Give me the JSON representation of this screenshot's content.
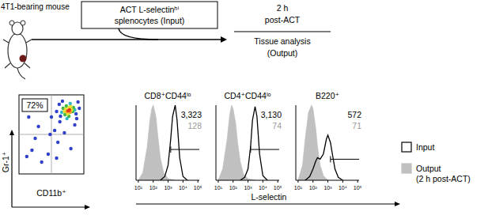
{
  "schematic": {
    "mouse_label": "4T1-bearing mouse",
    "injection": [
      "ACT L-selectinʰⁱ",
      "splenocytes (Input)"
    ],
    "time": [
      "2 h",
      "post-ACT"
    ],
    "analysis": [
      "Tissue analysis",
      "(Output)"
    ]
  },
  "chart_data": [
    {
      "type": "scatter",
      "x_label": "CD11b⁺",
      "y_label": "Gr-1⁺",
      "xlim": [
        0,
        100
      ],
      "ylim": [
        0,
        100
      ],
      "tick_labels": false,
      "quadrants": {
        "x": 50,
        "y": 50
      },
      "annotations": [
        "72%"
      ],
      "x": [
        76,
        78,
        74,
        79,
        72,
        77,
        81,
        75,
        70,
        80,
        83,
        73,
        68,
        84,
        77,
        71,
        86,
        66,
        79,
        74,
        20,
        35,
        45,
        60,
        30,
        55,
        63,
        50,
        62,
        91,
        40,
        86,
        70,
        25,
        15,
        58,
        89,
        64,
        58,
        93,
        48,
        36,
        80,
        12,
        67,
        88
      ],
      "values": [
        80,
        81,
        79,
        78,
        82,
        84,
        81,
        76,
        79,
        85,
        79,
        86,
        83,
        84,
        73,
        75,
        81,
        78,
        89,
        70,
        30,
        15,
        25,
        40,
        60,
        55,
        66,
        72,
        88,
        91,
        82,
        62,
        52,
        45,
        72,
        20,
        70,
        73,
        79,
        83,
        50,
        92,
        32,
        22,
        92,
        76
      ],
      "colors": [
        "#e8341c",
        "#e8341c",
        "#f0a020",
        "#f0a020",
        "#e8e030",
        "#e8e030",
        "#e8e030",
        "#e8e030",
        "#e8e030",
        "#e8e030",
        "#40b848",
        "#40b848",
        "#40b848",
        "#40b848",
        "#40b848",
        "#40b848",
        "#30b8c8",
        "#30b8c8",
        "#30b8c8",
        "#30b8c8",
        "#3040c8",
        "#3040c8",
        "#3040c8",
        "#3040c8",
        "#3040c8",
        "#3040c8",
        "#3040c8",
        "#3040c8",
        "#3040c8",
        "#3040c8",
        "#3040c8",
        "#3040c8",
        "#3040c8",
        "#3040c8",
        "#3040c8",
        "#3040c8",
        "#3040c8",
        "#3040c8",
        "#3040c8",
        "#3040c8",
        "#3040c8",
        "#3040c8",
        "#3040c8",
        "#3040c8",
        "#3040c8",
        "#3040c8"
      ]
    },
    {
      "type": "line",
      "title": "CD8⁺CD44ˡᵒ",
      "log": "x",
      "tick_labels": "x",
      "xlim": [
        7,
        125000
      ],
      "ylim": [
        0,
        100
      ],
      "xticks": [
        {
          "value": 10,
          "label": "10¹"
        },
        {
          "value": 100,
          "label": "10²"
        },
        {
          "value": 1000,
          "label": "10³"
        },
        {
          "value": 10000,
          "label": "10⁴"
        },
        {
          "value": 100000,
          "label": "10⁵"
        }
      ],
      "gate": {
        "x": [
          1500,
          125000
        ],
        "y": 41
      },
      "series": [
        {
          "type": "line",
          "color": "#000000",
          "annotation": "3,323",
          "x": [
            300,
            600,
            1000,
            1500,
            2000,
            3000,
            4000,
            6000,
            10000,
            20000
          ],
          "values": [
            0,
            5,
            20,
            55,
            85,
            100,
            80,
            30,
            5,
            0
          ]
        },
        {
          "type": "area",
          "color": "#c0c0c0",
          "annotation": "128",
          "x": [
            10,
            20,
            40,
            60,
            80,
            100,
            150,
            200,
            300,
            500,
            1000,
            3000
          ],
          "values": [
            0,
            10,
            45,
            80,
            95,
            100,
            85,
            60,
            30,
            10,
            2,
            0
          ]
        }
      ]
    },
    {
      "type": "line",
      "title": "CD4⁺CD44ˡᵒ",
      "log": "x",
      "tick_labels": "x",
      "xlim": [
        7,
        125000
      ],
      "ylim": [
        0,
        100
      ],
      "xticks": [
        {
          "value": 10,
          "label": "10¹"
        },
        {
          "value": 100,
          "label": "10²"
        },
        {
          "value": 1000,
          "label": "10³"
        },
        {
          "value": 10000,
          "label": "10⁴"
        },
        {
          "value": 100000,
          "label": "10⁵"
        }
      ],
      "gate": {
        "x": [
          1500,
          125000
        ],
        "y": 41
      },
      "series": [
        {
          "type": "line",
          "color": "#000000",
          "annotation": "3,130",
          "x": [
            300,
            600,
            1000,
            1500,
            2000,
            3000,
            4000,
            6000,
            10000,
            20000
          ],
          "values": [
            0,
            4,
            15,
            45,
            80,
            98,
            85,
            35,
            6,
            0
          ]
        },
        {
          "type": "area",
          "color": "#c0c0c0",
          "annotation": "74",
          "x": [
            10,
            20,
            40,
            60,
            80,
            100,
            150,
            200,
            300,
            500,
            1000,
            3000
          ],
          "values": [
            0,
            15,
            55,
            88,
            100,
            95,
            75,
            50,
            25,
            8,
            2,
            0
          ]
        }
      ]
    },
    {
      "type": "line",
      "title": "B220⁺",
      "log": "x",
      "tick_labels": "x",
      "xlim": [
        7,
        125000
      ],
      "ylim": [
        0,
        100
      ],
      "xticks": [
        {
          "value": 10,
          "label": "10¹"
        },
        {
          "value": 100,
          "label": "10²"
        },
        {
          "value": 1000,
          "label": "10³"
        },
        {
          "value": 10000,
          "label": "10⁴"
        },
        {
          "value": 100000,
          "label": "10⁵"
        }
      ],
      "gate": {
        "x": [
          1500,
          125000
        ],
        "y": 28
      },
      "series": [
        {
          "type": "line",
          "color": "#000000",
          "annotation": "572",
          "x": [
            30,
            60,
            100,
            150,
            200,
            300,
            500,
            800,
            1000,
            1500,
            2000,
            3000,
            5000,
            10000
          ],
          "values": [
            0,
            5,
            15,
            25,
            30,
            28,
            35,
            55,
            60,
            50,
            35,
            15,
            4,
            0
          ]
        },
        {
          "type": "area",
          "color": "#c0c0c0",
          "annotation": "71",
          "x": [
            10,
            20,
            30,
            50,
            80,
            100,
            150,
            200,
            300,
            500,
            1000
          ],
          "values": [
            0,
            20,
            55,
            90,
            100,
            95,
            70,
            45,
            20,
            6,
            0
          ]
        }
      ]
    }
  ],
  "x_label": "L-selectin",
  "key": [
    {
      "name": [
        "Input"
      ],
      "type": "line",
      "color": "#000000"
    },
    {
      "name": [
        "Output",
        "(2 h post-ACT)"
      ],
      "type": "area",
      "color": "#c0c0c0"
    }
  ]
}
